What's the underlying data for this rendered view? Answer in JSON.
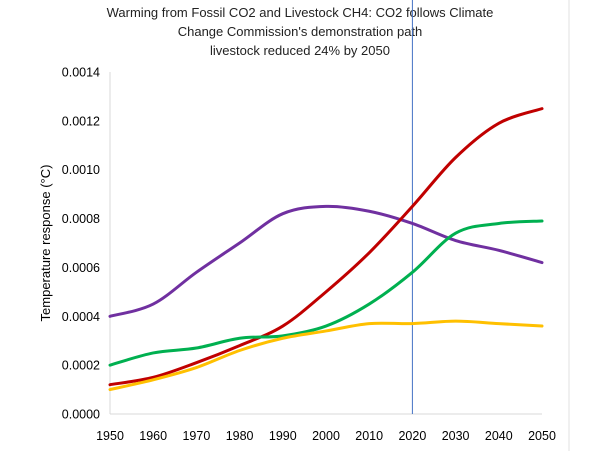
{
  "chart_data": {
    "type": "line",
    "title_lines": [
      "Warming from Fossil CO2 and Livestock CH4: CO2 follows Climate",
      "Change Commission's  demonstration path",
      "livestock reduced 24% by 2050"
    ],
    "xlabel": "",
    "ylabel": "Temperature response (°C)",
    "x": [
      1950,
      1960,
      1970,
      1980,
      1990,
      2000,
      2010,
      2020,
      2030,
      2040,
      2050
    ],
    "xlim": [
      1950,
      2050
    ],
    "ylim": [
      0,
      0.0014
    ],
    "x_ticks": [
      "1950",
      "1960",
      "1970",
      "1980",
      "1990",
      "2000",
      "2010",
      "2020",
      "2030",
      "2040",
      "2050"
    ],
    "y_ticks": [
      "0.0000",
      "0.0002",
      "0.0004",
      "0.0006",
      "0.0008",
      "0.0010",
      "0.0012",
      "0.0014"
    ],
    "grid": false,
    "legend": "none",
    "vertical_marker_x": 2020,
    "series": [
      {
        "color": "#7030a0",
        "values": [
          0.0004,
          0.00045,
          0.00058,
          0.0007,
          0.00082,
          0.00085,
          0.00083,
          0.00078,
          0.00071,
          0.00067,
          0.00062
        ]
      },
      {
        "color": "#c00000",
        "values": [
          0.00012,
          0.00015,
          0.00021,
          0.00028,
          0.00036,
          0.0005,
          0.00066,
          0.00085,
          0.00105,
          0.00119,
          0.00125
        ]
      },
      {
        "color": "#00b050",
        "values": [
          0.0002,
          0.00025,
          0.00027,
          0.00031,
          0.00032,
          0.00036,
          0.00045,
          0.00058,
          0.00074,
          0.00078,
          0.00079
        ]
      },
      {
        "color": "#ffc000",
        "values": [
          0.0001,
          0.00014,
          0.00019,
          0.00026,
          0.00031,
          0.00034,
          0.00037,
          0.00037,
          0.00038,
          0.00037,
          0.00036
        ]
      }
    ],
    "marker_color": "#4472c4",
    "axis_color": "#d9d9d9"
  }
}
